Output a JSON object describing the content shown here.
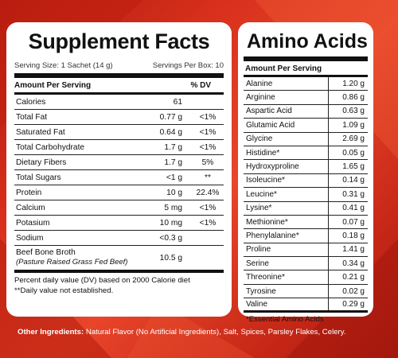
{
  "supplement_facts": {
    "title": "Supplement Facts",
    "serving_size": "Serving Size: 1 Sachet (14 g)",
    "servings_per_box": "Servings Per Box: 10",
    "header_amount": "Amount Per Serving",
    "header_dv": "% DV",
    "rows": [
      {
        "name": "Calories",
        "amount": "61",
        "dv": ""
      },
      {
        "name": "Total Fat",
        "amount": "0.77 g",
        "dv": "<1%"
      },
      {
        "name": "Saturated Fat",
        "amount": "0.64 g",
        "dv": "<1%"
      },
      {
        "name": "Total Carbohydrate",
        "amount": "1.7 g",
        "dv": "<1%"
      },
      {
        "name": "Dietary Fibers",
        "amount": "1.7 g",
        "dv": "5%"
      },
      {
        "name": "Total Sugars",
        "amount": "<1 g",
        "dv": "**"
      },
      {
        "name": "Protein",
        "amount": "10 g",
        "dv": "22.4%"
      },
      {
        "name": "Calcium",
        "amount": "5 mg",
        "dv": "<1%"
      },
      {
        "name": "Potasium",
        "amount": "10 mg",
        "dv": "<1%"
      },
      {
        "name": "Sodium",
        "amount": "<0.3 g",
        "dv": ""
      }
    ],
    "broth": {
      "name": "Beef Bone Broth",
      "sub": "(Pasture Raised Grass Fed Beef)",
      "amount": "10.5 g"
    },
    "footnote_1": "Percent daily value (DV) based on 2000 Calorie diet",
    "footnote_2": "**Daily value not established."
  },
  "amino_acids": {
    "title": "Amino Acids",
    "header": "Amount Per Serving",
    "rows": [
      {
        "name": "Alanine",
        "value": "1.20 g"
      },
      {
        "name": "Arginine",
        "value": "0.86 g"
      },
      {
        "name": "Aspartic Acid",
        "value": "0.63 g"
      },
      {
        "name": "Glutamic Acid",
        "value": "1.09 g"
      },
      {
        "name": "Glycine",
        "value": "2.69 g"
      },
      {
        "name": "Histidine*",
        "value": "0.05 g"
      },
      {
        "name": "Hydroxyproline",
        "value": "1.65 g"
      },
      {
        "name": "Isoleucine*",
        "value": "0.14 g"
      },
      {
        "name": "Leucine*",
        "value": "0.31 g"
      },
      {
        "name": "Lysine*",
        "value": "0.41 g"
      },
      {
        "name": "Methionine*",
        "value": "0.07 g"
      },
      {
        "name": "Phenylalanine*",
        "value": "0.18 g"
      },
      {
        "name": "Proline",
        "value": "1.41 g"
      },
      {
        "name": "Serine",
        "value": "0.34 g"
      },
      {
        "name": "Threonine*",
        "value": "0.21 g"
      },
      {
        "name": "Tyrosine",
        "value": "0.02 g"
      },
      {
        "name": "Valine",
        "value": "0.29 g"
      }
    ],
    "footnote": "*Essential Amino Acids"
  },
  "other_ingredients": {
    "label": "Other Ingredients:",
    "text": "Natural Flavor (No Artificial Ingredients), Salt, Spices, Parsley Flakes, Celery."
  },
  "colors": {
    "background": "#d8301c",
    "panel": "#ffffff",
    "text": "#111111"
  }
}
